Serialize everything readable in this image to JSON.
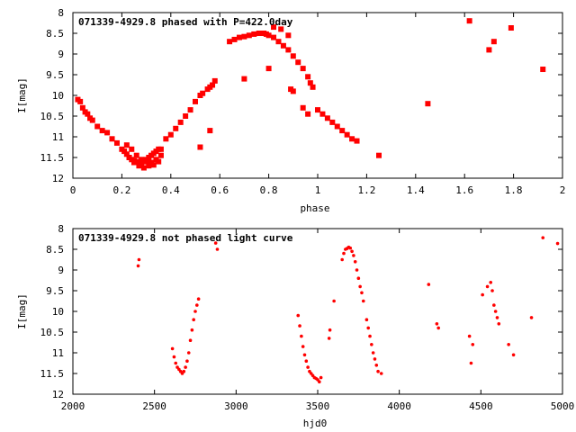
{
  "chart_data": [
    {
      "type": "scatter",
      "title": "071339-4929.8 phased with P=422.0day",
      "xlabel": "phase",
      "ylabel": "I[mag]",
      "xlim": [
        0,
        2
      ],
      "ylim": [
        12,
        8
      ],
      "y_inverted": true,
      "grid": false,
      "xticks": [
        "0",
        "0.2",
        "0.4",
        "0.6",
        "0.8",
        "1",
        "1.2",
        "1.4",
        "1.6",
        "1.8",
        "2"
      ],
      "xtick_values": [
        0,
        0.2,
        0.4,
        0.6,
        0.8,
        1.0,
        1.2,
        1.4,
        1.6,
        1.8,
        2.0
      ],
      "yticks": [
        "8",
        "8.5",
        "9",
        "9.5",
        "10",
        "10.5",
        "11",
        "11.5",
        "12"
      ],
      "ytick_values": [
        8,
        8.5,
        9,
        9.5,
        10,
        10.5,
        11,
        11.5,
        12
      ],
      "marker": "filled-square",
      "color": "#ff0000",
      "x": [
        0.02,
        0.03,
        0.04,
        0.05,
        0.06,
        0.07,
        0.08,
        0.1,
        0.12,
        0.14,
        0.16,
        0.18,
        0.2,
        0.21,
        0.22,
        0.23,
        0.24,
        0.25,
        0.26,
        0.27,
        0.28,
        0.29,
        0.3,
        0.31,
        0.32,
        0.33,
        0.34,
        0.35,
        0.36,
        0.22,
        0.24,
        0.26,
        0.28,
        0.3,
        0.32,
        0.34,
        0.36,
        0.23,
        0.25,
        0.27,
        0.29,
        0.31,
        0.33,
        0.35,
        0.38,
        0.4,
        0.42,
        0.44,
        0.46,
        0.48,
        0.5,
        0.52,
        0.53,
        0.55,
        0.56,
        0.57,
        0.58,
        0.52,
        0.56,
        0.64,
        0.66,
        0.68,
        0.7,
        0.72,
        0.74,
        0.76,
        0.7,
        0.78,
        0.79,
        0.8,
        0.82,
        0.84,
        0.86,
        0.88,
        0.9,
        0.92,
        0.94,
        0.96,
        0.97,
        0.98,
        0.8,
        0.82,
        0.85,
        0.88,
        0.89,
        0.9,
        0.94,
        0.96,
        1.0,
        1.02,
        1.04,
        1.06,
        1.08,
        1.1,
        1.12,
        1.14,
        1.16,
        1.25,
        1.45,
        1.62,
        1.7,
        1.72,
        1.79,
        1.92
      ],
      "y": [
        10.1,
        10.15,
        10.3,
        10.4,
        10.45,
        10.55,
        10.6,
        10.75,
        10.85,
        10.9,
        11.05,
        11.15,
        11.3,
        11.35,
        11.42,
        11.5,
        11.55,
        11.58,
        11.6,
        11.62,
        11.65,
        11.6,
        11.55,
        11.5,
        11.45,
        11.4,
        11.35,
        11.3,
        11.3,
        11.2,
        11.3,
        11.45,
        11.55,
        11.6,
        11.62,
        11.55,
        11.45,
        11.5,
        11.62,
        11.7,
        11.75,
        11.7,
        11.68,
        11.6,
        11.05,
        10.95,
        10.8,
        10.65,
        10.5,
        10.35,
        10.15,
        10.0,
        9.95,
        9.85,
        9.8,
        9.75,
        9.65,
        11.25,
        10.85,
        8.7,
        8.65,
        8.6,
        8.58,
        8.55,
        8.52,
        8.5,
        9.6,
        8.5,
        8.52,
        8.55,
        8.6,
        8.7,
        8.8,
        8.9,
        9.05,
        9.2,
        9.35,
        9.55,
        9.7,
        9.8,
        9.35,
        8.35,
        8.4,
        8.55,
        9.85,
        9.9,
        10.3,
        10.45,
        10.35,
        10.45,
        10.55,
        10.65,
        10.75,
        10.85,
        10.95,
        11.05,
        11.1,
        11.45,
        10.2,
        8.2,
        8.9,
        8.7,
        8.37,
        9.37
      ]
    },
    {
      "type": "scatter",
      "title": "071339-4929.8 not phased light curve",
      "xlabel": "hjd0",
      "ylabel": "I[mag]",
      "xlim": [
        2000,
        5000
      ],
      "ylim": [
        12,
        8
      ],
      "y_inverted": true,
      "grid": false,
      "xticks": [
        "2000",
        "2500",
        "3000",
        "3500",
        "4000",
        "4500",
        "5000"
      ],
      "xtick_values": [
        2000,
        2500,
        3000,
        3500,
        4000,
        4500,
        5000
      ],
      "yticks": [
        "8",
        "8.5",
        "9",
        "9.5",
        "10",
        "10.5",
        "11",
        "11.5",
        "12"
      ],
      "ytick_values": [
        8,
        8.5,
        9,
        9.5,
        10,
        10.5,
        11,
        11.5,
        12
      ],
      "marker": "small-dot",
      "color": "#ff0000",
      "x": [
        2400,
        2405,
        2610,
        2620,
        2630,
        2640,
        2650,
        2660,
        2670,
        2680,
        2690,
        2700,
        2710,
        2720,
        2730,
        2740,
        2750,
        2760,
        2770,
        2875,
        2885,
        3380,
        3390,
        3400,
        3410,
        3420,
        3430,
        3440,
        3450,
        3460,
        3470,
        3480,
        3490,
        3500,
        3510,
        3520,
        3570,
        3575,
        3600,
        3650,
        3660,
        3670,
        3680,
        3690,
        3700,
        3710,
        3720,
        3730,
        3740,
        3750,
        3760,
        3770,
        3780,
        3800,
        3810,
        3820,
        3830,
        3840,
        3850,
        3860,
        3870,
        3890,
        4180,
        4230,
        4240,
        4430,
        4440,
        4450,
        4510,
        4540,
        4560,
        4570,
        4580,
        4590,
        4600,
        4610,
        4670,
        4700,
        4810,
        4880,
        4970
      ],
      "y": [
        8.9,
        8.75,
        10.9,
        11.1,
        11.25,
        11.35,
        11.4,
        11.45,
        11.5,
        11.45,
        11.35,
        11.2,
        11.0,
        10.7,
        10.45,
        10.2,
        10.0,
        9.85,
        9.7,
        8.35,
        8.5,
        10.1,
        10.35,
        10.6,
        10.85,
        11.05,
        11.2,
        11.35,
        11.45,
        11.5,
        11.55,
        11.6,
        11.62,
        11.65,
        11.7,
        11.6,
        10.65,
        10.45,
        9.75,
        8.75,
        8.6,
        8.5,
        8.48,
        8.45,
        8.47,
        8.55,
        8.65,
        8.8,
        9.0,
        9.2,
        9.4,
        9.55,
        9.75,
        10.2,
        10.4,
        10.6,
        10.8,
        11.0,
        11.15,
        11.3,
        11.45,
        11.5,
        9.35,
        10.3,
        10.4,
        10.6,
        11.25,
        10.8,
        9.6,
        9.4,
        9.3,
        9.5,
        9.85,
        10.0,
        10.15,
        10.3,
        10.8,
        11.05,
        10.15,
        8.22,
        8.36
      ]
    }
  ]
}
